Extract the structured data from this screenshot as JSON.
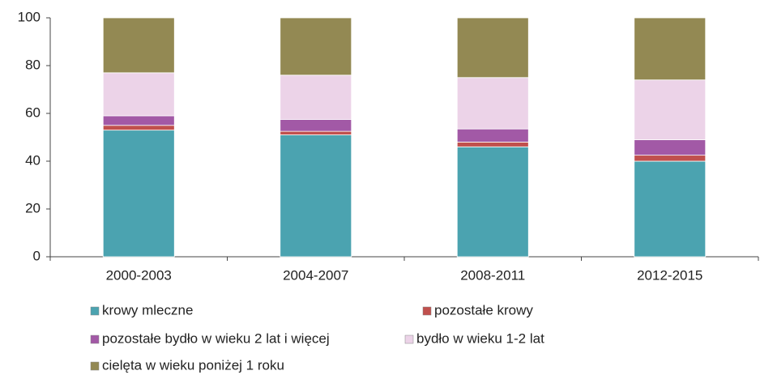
{
  "chart_data": {
    "type": "stacked_bar",
    "categories": [
      "2000-2003",
      "2004-2007",
      "2008-2011",
      "2012-2015"
    ],
    "series": [
      {
        "name": "krowy mleczne",
        "color": "#4ba3b0",
        "values": [
          53,
          51,
          46,
          40
        ]
      },
      {
        "name": " pozostałe krowy",
        "color": "#c0504d",
        "values": [
          2,
          1.5,
          2,
          2.5
        ]
      },
      {
        "name": "pozostałe bydło w wieku 2 lat i więcej",
        "color": "#a259a6",
        "values": [
          4,
          5,
          5.5,
          6.5
        ]
      },
      {
        "name": "bydło w wieku 1-2 lat",
        "color": "#ecd3e8",
        "values": [
          18,
          18.5,
          21.5,
          25
        ]
      },
      {
        "name": "cielęta w wieku poniżej 1 roku",
        "color": "#938953",
        "values": [
          23,
          24,
          25,
          26
        ]
      }
    ],
    "ylim": [
      0,
      100
    ],
    "yticks": [
      0,
      20,
      40,
      60,
      80,
      100
    ],
    "grid": false
  }
}
